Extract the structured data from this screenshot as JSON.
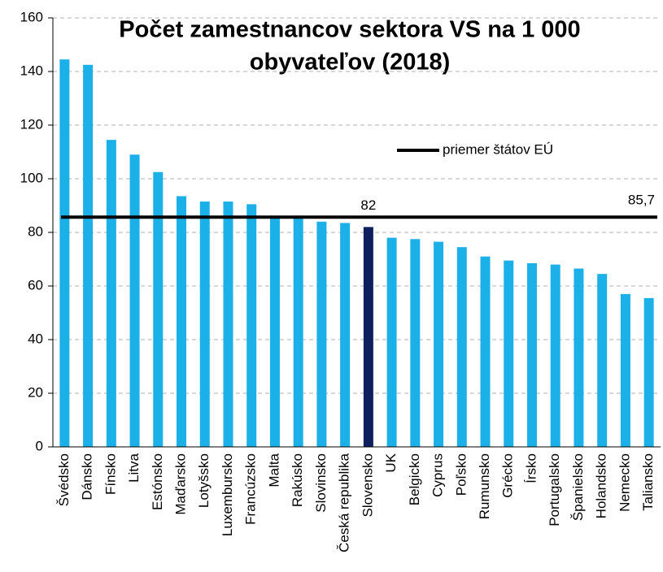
{
  "chart_data": {
    "type": "bar",
    "title": [
      "Počet zamestnancov sektora VS na 1 000",
      "obyvateľov (2018)"
    ],
    "categories": [
      "Švédsko",
      "Dánsko",
      "Fínsko",
      "Litva",
      "Estónsko",
      "Maďarsko",
      "Lotyšsko",
      "Luxembursko",
      "Francúzsko",
      "Malta",
      "Rakúsko",
      "Slovinsko",
      "Česká republika",
      "Slovensko",
      "UK",
      "Belgicko",
      "Cyprus",
      "Poľsko",
      "Rumunsko",
      "Grécko",
      "Írsko",
      "Portugalsko",
      "Španielsko",
      "Holandsko",
      "Nemecko",
      "Taliansko"
    ],
    "values": [
      144.5,
      142.5,
      114.5,
      109,
      102.5,
      93.5,
      91.5,
      91.5,
      90.5,
      86,
      85.5,
      84,
      83.5,
      82,
      78,
      77.5,
      76.5,
      74.5,
      71,
      69.5,
      68.5,
      68,
      66.5,
      64.5,
      57,
      55.5
    ],
    "value_labels": [
      null,
      null,
      null,
      null,
      null,
      null,
      null,
      null,
      null,
      null,
      null,
      null,
      null,
      "82",
      null,
      null,
      null,
      null,
      null,
      null,
      null,
      null,
      null,
      null,
      null,
      null
    ],
    "colors": [
      "#1cb0e8",
      "#1cb0e8",
      "#1cb0e8",
      "#1cb0e8",
      "#1cb0e8",
      "#1cb0e8",
      "#1cb0e8",
      "#1cb0e8",
      "#1cb0e8",
      "#1cb0e8",
      "#1cb0e8",
      "#1cb0e8",
      "#1cb0e8",
      "#0d1f5c",
      "#1cb0e8",
      "#1cb0e8",
      "#1cb0e8",
      "#1cb0e8",
      "#1cb0e8",
      "#1cb0e8",
      "#1cb0e8",
      "#1cb0e8",
      "#1cb0e8",
      "#1cb0e8",
      "#1cb0e8",
      "#1cb0e8"
    ],
    "reference_line": {
      "name": "priemer štátov EÚ",
      "value": 85.7,
      "label": "85,7",
      "color": "#000000"
    },
    "ylim": [
      0,
      160
    ],
    "yticks": [
      0,
      20,
      40,
      60,
      80,
      100,
      120,
      140,
      160
    ],
    "grid": true
  }
}
